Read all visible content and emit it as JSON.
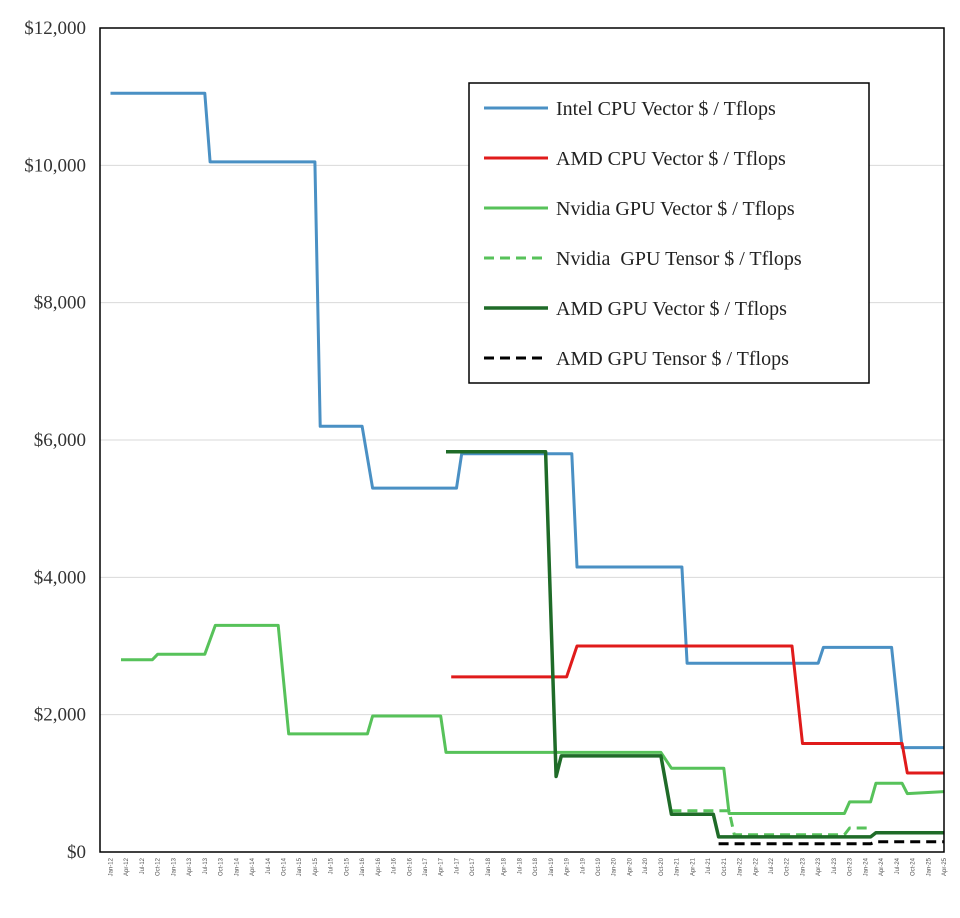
{
  "chart_data": {
    "type": "line",
    "title": "",
    "xlabel": "",
    "ylabel": "",
    "ylim": [
      0,
      12000
    ],
    "yticks": [
      0,
      2000,
      4000,
      6000,
      8000,
      10000,
      12000
    ],
    "ytick_labels": [
      "$0",
      "$2,000",
      "$4,000",
      "$6,000",
      "$8,000",
      "$10,000",
      "$12,000"
    ],
    "grid": "horizontal",
    "legend_position": "top-right",
    "x_ticks": [
      "Jan-12",
      "Apr-12",
      "Jul-12",
      "Oct-12",
      "Jan-13",
      "Apr-13",
      "Jul-13",
      "Oct-13",
      "Jan-14",
      "Apr-14",
      "Jul-14",
      "Oct-14",
      "Jan-15",
      "Apr-15",
      "Jul-15",
      "Oct-15",
      "Jan-16",
      "Apr-16",
      "Jul-16",
      "Oct-16",
      "Jan-17",
      "Apr-17",
      "Jul-17",
      "Oct-17",
      "Jan-18",
      "Apr-18",
      "Jul-18",
      "Oct-18",
      "Jan-19",
      "Apr-19",
      "Jul-19",
      "Oct-19",
      "Jan-20",
      "Apr-20",
      "Jul-20",
      "Oct-20",
      "Jan-21",
      "Apr-21",
      "Jul-21",
      "Oct-21",
      "Jan-22",
      "Apr-22",
      "Jul-22",
      "Oct-22",
      "Jan-23",
      "Apr-23",
      "Jul-23",
      "Oct-23",
      "Jan-24",
      "Apr-24",
      "Jul-24",
      "Oct-24",
      "Jan-25",
      "Apr-25"
    ],
    "series": [
      {
        "name": "Intel CPU Vector $ / Tflops",
        "color": "#4a90c4",
        "dash": "solid",
        "width": 3,
        "points": [
          [
            "Jan-12",
            11050
          ],
          [
            "Jul-13",
            11050
          ],
          [
            "Aug-13",
            10050
          ],
          [
            "Apr-15",
            10050
          ],
          [
            "May-15",
            6200
          ],
          [
            "Jan-16",
            6200
          ],
          [
            "Mar-16",
            5300
          ],
          [
            "Jul-17",
            5300
          ],
          [
            "Aug-17",
            5800
          ],
          [
            "May-19",
            5800
          ],
          [
            "Jun-19",
            4150
          ],
          [
            "Feb-21",
            4150
          ],
          [
            "Mar-21",
            2750
          ],
          [
            "Apr-23",
            2750
          ],
          [
            "May-23",
            2980
          ],
          [
            "Jun-24",
            2980
          ],
          [
            "Aug-24",
            1520
          ],
          [
            "Apr-25",
            1520
          ]
        ]
      },
      {
        "name": "AMD CPU Vector $ / Tflops",
        "color": "#e01b1b",
        "dash": "solid",
        "width": 3,
        "points": [
          [
            "Jun-17",
            2550
          ],
          [
            "Apr-19",
            2550
          ],
          [
            "Jun-19",
            3000
          ],
          [
            "Nov-22",
            3000
          ],
          [
            "Jan-23",
            1580
          ],
          [
            "Aug-24",
            1580
          ],
          [
            "Sep-24",
            1150
          ],
          [
            "Apr-25",
            1150
          ]
        ]
      },
      {
        "name": "Nvidia GPU Vector $ / Tflops",
        "color": "#57c25a",
        "dash": "solid",
        "width": 3,
        "points": [
          [
            "Mar-12",
            2800
          ],
          [
            "Sep-12",
            2800
          ],
          [
            "Oct-12",
            2880
          ],
          [
            "Jul-13",
            2880
          ],
          [
            "Sep-13",
            3300
          ],
          [
            "Sep-14",
            3300
          ],
          [
            "Nov-14",
            1720
          ],
          [
            "Feb-16",
            1720
          ],
          [
            "Mar-16",
            1980
          ],
          [
            "Apr-17",
            1980
          ],
          [
            "May-17",
            1450
          ],
          [
            "Oct-20",
            1450
          ],
          [
            "Dec-20",
            1220
          ],
          [
            "Oct-21",
            1220
          ],
          [
            "Nov-21",
            560
          ],
          [
            "Sep-23",
            560
          ],
          [
            "Oct-23",
            730
          ],
          [
            "Feb-24",
            730
          ],
          [
            "Mar-24",
            1000
          ],
          [
            "Aug-24",
            1000
          ],
          [
            "Sep-24",
            850
          ],
          [
            "Apr-25",
            880
          ]
        ]
      },
      {
        "name": "Nvidia  GPU Tensor $ / Tflops",
        "color": "#57c25a",
        "dash": "dashed",
        "width": 3,
        "points": [
          [
            "Dec-20",
            600
          ],
          [
            "Jul-21",
            600
          ],
          [
            "Aug-21",
            600
          ],
          [
            "Nov-21",
            600
          ],
          [
            "Dec-21",
            250
          ],
          [
            "Sep-23",
            250
          ],
          [
            "Oct-23",
            350
          ],
          [
            "Feb-24",
            350
          ]
        ]
      },
      {
        "name": "AMD GPU Vector $ / Tflops",
        "color": "#1f6b28",
        "dash": "solid",
        "width": 3.5,
        "points": [
          [
            "May-17",
            5830
          ],
          [
            "Dec-18",
            5830
          ],
          [
            "Feb-19",
            1100
          ],
          [
            "Mar-19",
            1400
          ],
          [
            "Oct-20",
            1400
          ],
          [
            "Dec-20",
            550
          ],
          [
            "Aug-21",
            550
          ],
          [
            "Sep-21",
            220
          ],
          [
            "Feb-24",
            220
          ],
          [
            "Mar-24",
            280
          ],
          [
            "Apr-25",
            280
          ]
        ]
      },
      {
        "name": "AMD GPU Tensor $ / Tflops",
        "color": "#000000",
        "dash": "dashed",
        "width": 3,
        "points": [
          [
            "Sep-21",
            120
          ],
          [
            "Feb-24",
            120
          ],
          [
            "Mar-24",
            150
          ],
          [
            "Apr-25",
            150
          ]
        ]
      }
    ]
  }
}
